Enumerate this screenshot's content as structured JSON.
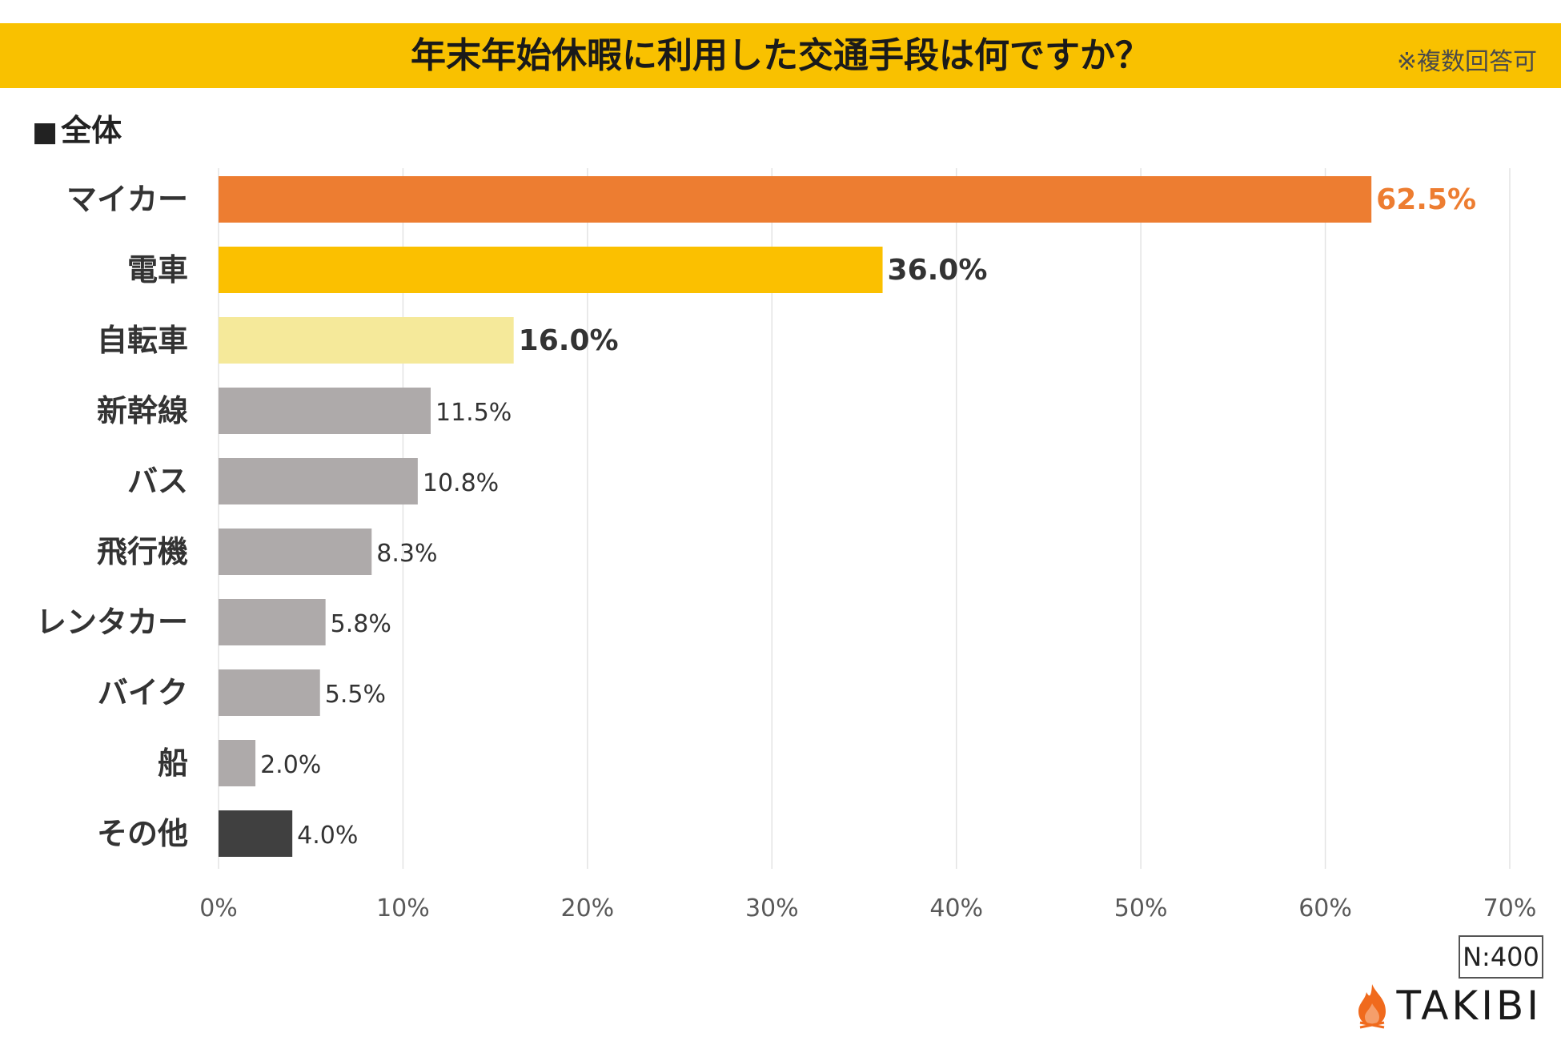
{
  "header": {
    "title": "年末年始休暇に利用した交通手段は何ですか？",
    "note": "※複数回答可"
  },
  "section": {
    "square": "■",
    "label": "全体"
  },
  "sample_size": "N:400",
  "brand": {
    "name": "TAKIBI",
    "icon": "flame-icon",
    "icon_color": "#f06a1d"
  },
  "colors": {
    "accent_band": "#f9c100",
    "top1": "#ed7d31",
    "top2": "#fbc000",
    "top3": "#f5e99a",
    "rest": "#aeaaaa",
    "other": "#404040",
    "top1_label": "#ed7d31",
    "bold_label": "#333333",
    "normal_label": "#333333"
  },
  "chart_data": {
    "type": "bar",
    "orientation": "horizontal",
    "title": "年末年始休暇に利用した交通手段は何ですか？",
    "categories": [
      "マイカー",
      "電車",
      "自転車",
      "新幹線",
      "バス",
      "飛行機",
      "レンタカー",
      "バイク",
      "船",
      "その他"
    ],
    "values": [
      62.5,
      36.0,
      16.0,
      11.5,
      10.8,
      8.3,
      5.8,
      5.5,
      2.0,
      4.0
    ],
    "value_labels": [
      "62.5%",
      "36.0%",
      "16.0%",
      "11.5%",
      "10.8%",
      "8.3%",
      "5.8%",
      "5.5%",
      "2.0%",
      "4.0%"
    ],
    "bar_colors": [
      "#ed7d31",
      "#fbc000",
      "#f5e99a",
      "#aeaaaa",
      "#aeaaaa",
      "#aeaaaa",
      "#aeaaaa",
      "#aeaaaa",
      "#aeaaaa",
      "#404040"
    ],
    "label_emphasis": [
      "top1",
      "bold",
      "bold",
      "normal",
      "normal",
      "normal",
      "normal",
      "normal",
      "normal",
      "normal"
    ],
    "xlim": [
      0,
      70
    ],
    "xticks": [
      0,
      10,
      20,
      30,
      40,
      50,
      60,
      70
    ],
    "xtick_labels": [
      "0%",
      "10%",
      "20%",
      "30%",
      "40%",
      "50%",
      "60%",
      "70%"
    ],
    "grid": true,
    "xlabel": "",
    "ylabel": ""
  }
}
